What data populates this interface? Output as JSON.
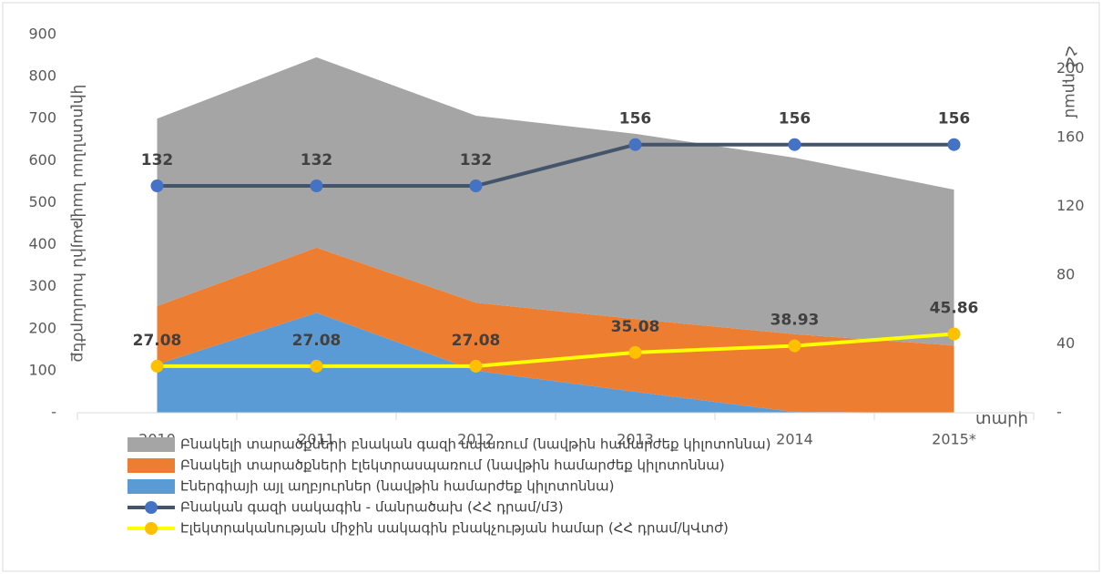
{
  "chart_data": {
    "type": "area",
    "categories": [
      "2010",
      "2011",
      "2012",
      "2013",
      "2014",
      "2015*"
    ],
    "ylabel": "կիլոտոննա նավթային համարժեք",
    "y2label": "ՀՀ դրամ",
    "xlabel": "տարի",
    "ylim": [
      0,
      900
    ],
    "yticks": [
      {
        "value": 0,
        "label": "-"
      },
      100,
      200,
      300,
      400,
      500,
      600,
      700,
      800,
      900
    ],
    "y2lim": [
      0,
      220
    ],
    "y2ticks": [
      {
        "value": 0,
        "label": "-"
      },
      40,
      80,
      120,
      160,
      200
    ],
    "series": [
      {
        "name": "Բնակելի տարածքների բնական գազի սպառում (նավթին համարժեք կիլոտոննա)",
        "type": "area",
        "color": "#a5a5a5",
        "values": [
          446,
          453,
          445,
          441,
          420,
          371
        ]
      },
      {
        "name": "Բնակելի տարածքների էլեկտրասպառում (նավթին համարժեք կիլոտոննա)",
        "type": "area",
        "color": "#ed7d31",
        "values": [
          139,
          155,
          162,
          173,
          185,
          160
        ]
      },
      {
        "name": "Էներգիայի այլ աղբյուրներ (նավթին համարժեք կիլոտոննա)",
        "type": "area",
        "color": "#5b9bd5",
        "values": [
          115,
          238,
          100,
          50,
          2,
          0
        ]
      },
      {
        "name": "Բնական գազի սակագին - մանրածախ (ՀՀ դրամ/մ3)",
        "type": "line",
        "axis": "y2",
        "color": "#44546a",
        "marker": "#4472c4",
        "values": [
          132,
          132,
          132,
          156,
          156,
          156
        ]
      },
      {
        "name": "Էլեկտրականության միջին սակագին բնակչության համար (ՀՀ դրամ/կՎտժ)",
        "type": "line",
        "axis": "y2",
        "color": "#ffff00",
        "marker": "#ffc000",
        "values": [
          27.08,
          27.08,
          27.08,
          35.08,
          38.93,
          45.86
        ]
      }
    ]
  }
}
